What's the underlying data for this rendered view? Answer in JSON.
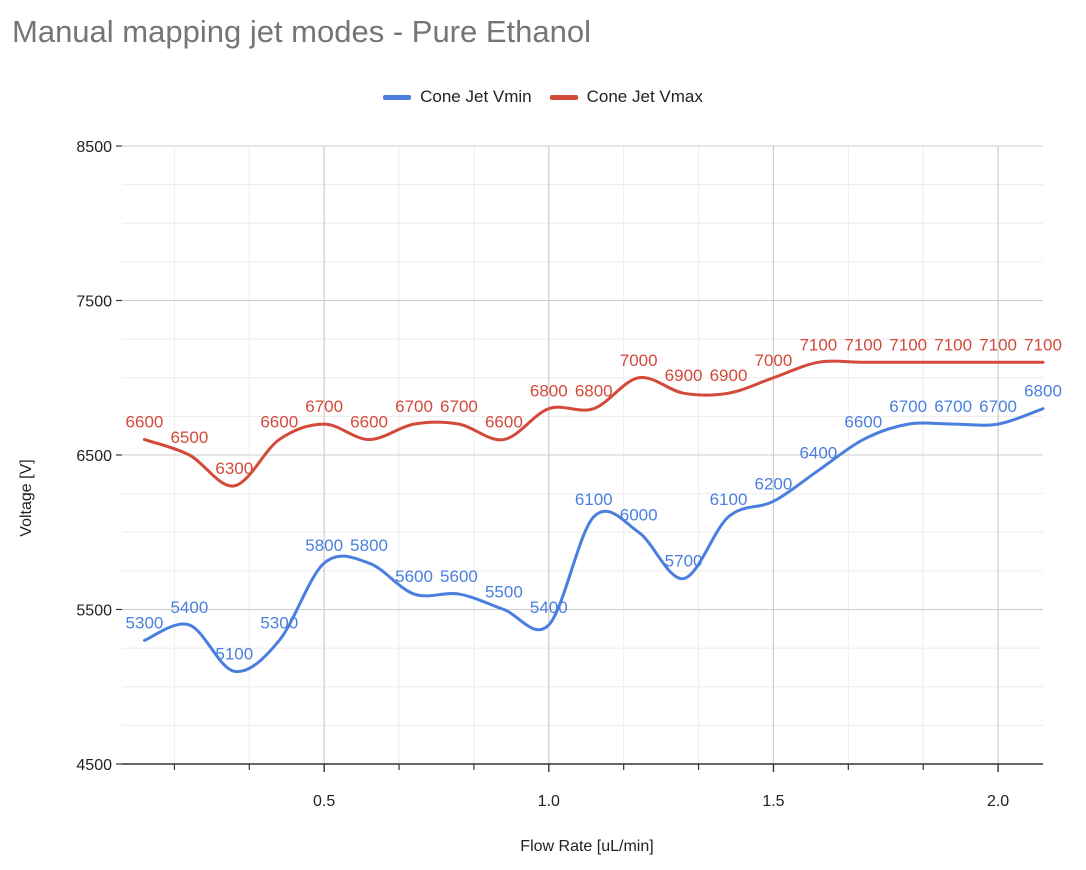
{
  "chart_data": {
    "type": "line",
    "title": "Manual mapping jet modes - Pure Ethanol",
    "xlabel": "Flow Rate [uL/min]",
    "ylabel": "Voltage [V]",
    "xlim": [
      0.05,
      2.1
    ],
    "ylim": [
      4500,
      8500
    ],
    "x_ticks": [
      "0.5",
      "1.0",
      "1.5",
      "2.0"
    ],
    "x_tick_values": [
      0.5,
      1.0,
      1.5,
      2.0
    ],
    "y_ticks": [
      "4500",
      "5500",
      "6500",
      "7500",
      "8500"
    ],
    "y_tick_values": [
      4500,
      5500,
      6500,
      7500,
      8500
    ],
    "grid": true,
    "legend_position": "top",
    "x": [
      0.1,
      0.2,
      0.3,
      0.4,
      0.5,
      0.6,
      0.7,
      0.8,
      0.9,
      1.0,
      1.1,
      1.2,
      1.3,
      1.4,
      1.5,
      1.6,
      1.7,
      1.8,
      1.9,
      2.0,
      2.1
    ],
    "series": [
      {
        "name": "Cone Jet Vmin",
        "color": "#4a7fe0",
        "values": [
          5300,
          5400,
          5100,
          5300,
          5800,
          5800,
          5600,
          5600,
          5500,
          5400,
          6100,
          6000,
          5700,
          6100,
          6200,
          6400,
          6600,
          6700,
          6700,
          6700,
          6800
        ],
        "labels": [
          "5300",
          "5400",
          "5100",
          "5300",
          "5800",
          "5800",
          "5600",
          "5600",
          "5500",
          "5400",
          "6100",
          "6000",
          "5700",
          "6100",
          "6200",
          "6400",
          "6600",
          "6700",
          "6700",
          "6700",
          "6800"
        ]
      },
      {
        "name": "Cone Jet Vmax",
        "color": "#d44a3a",
        "values": [
          6600,
          6500,
          6300,
          6600,
          6700,
          6600,
          6700,
          6700,
          6600,
          6800,
          6800,
          7000,
          6900,
          6900,
          7000,
          7100,
          7100,
          7100,
          7100,
          7100,
          7100
        ],
        "labels": [
          "6600",
          "6500",
          "6300",
          "6600",
          "6700",
          "6600",
          "6700",
          "6700",
          "6600",
          "6800",
          "6800",
          "7000",
          "6900",
          "6900",
          "7000",
          "7100",
          "7100",
          "7100",
          "7100",
          "7100",
          "7100"
        ]
      }
    ]
  }
}
